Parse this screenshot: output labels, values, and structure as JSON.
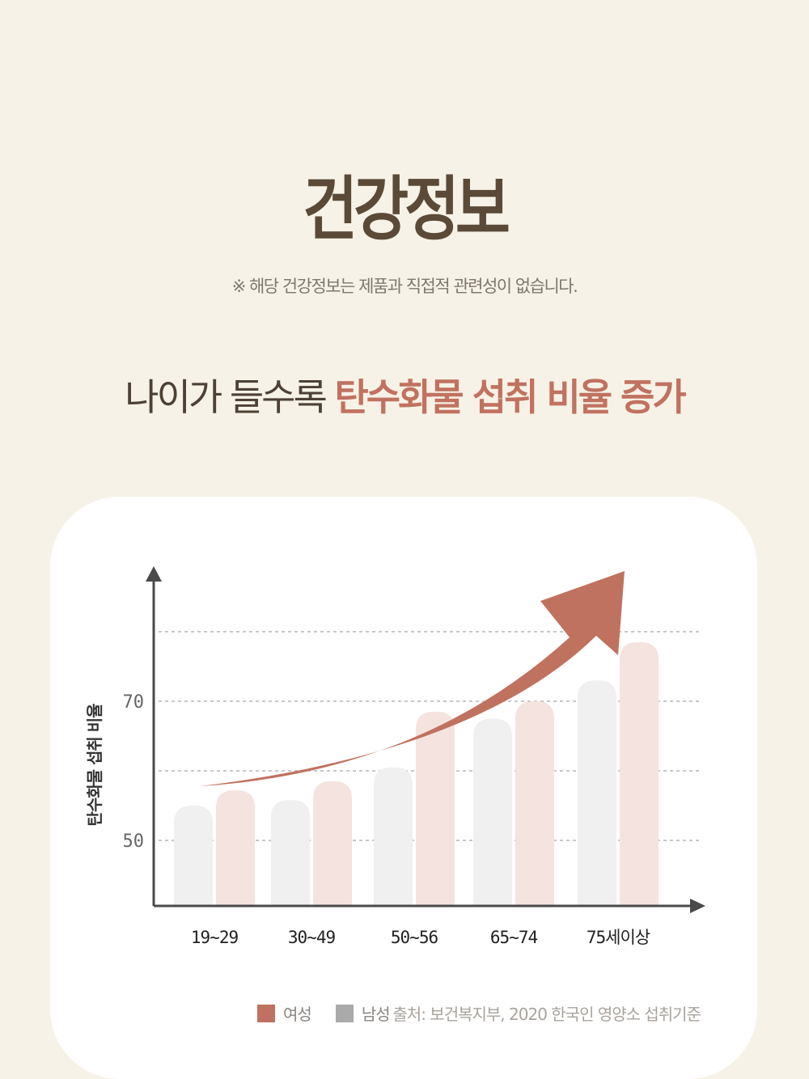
{
  "page": {
    "title": "건강정보",
    "notice": "※ 해당 건강정보는 제품과 직접적 관련성이 없습니다.",
    "headline_plain": "나이가 들수록",
    "headline_accent": "탄수화물 섭취 비율 증가",
    "source": "출처: 보건복지부, 2020 한국인 영양소 섭취기준"
  },
  "colors": {
    "female": "#c07260",
    "female_bar": "#f4e3df",
    "male": "#aaaaaa",
    "male_bar": "#f0f0f0",
    "arrow": "#c07260",
    "axis": "#4a4a4a"
  },
  "chart_data": {
    "type": "bar",
    "title": "",
    "xlabel": "",
    "ylabel": "탄수화물 섭취 비율",
    "ylim": [
      40,
      85
    ],
    "yticks": [
      50,
      70
    ],
    "grid": true,
    "categories": [
      "19~29",
      "30~49",
      "50~56",
      "65~74",
      "75세이상"
    ],
    "series": [
      {
        "name": "남성",
        "color": "#f0f0f0",
        "values": [
          55,
          55.8,
          60.5,
          67.5,
          73
        ]
      },
      {
        "name": "여성",
        "color": "#f4e3df",
        "values": [
          57.2,
          58.5,
          68.5,
          70,
          78.5
        ]
      }
    ],
    "legend": {
      "position": "bottom",
      "items": [
        {
          "label": "여성",
          "color": "#c07260"
        },
        {
          "label": "남성",
          "color": "#aaaaaa"
        }
      ]
    },
    "annotations": [
      "upward trend arrow"
    ]
  }
}
